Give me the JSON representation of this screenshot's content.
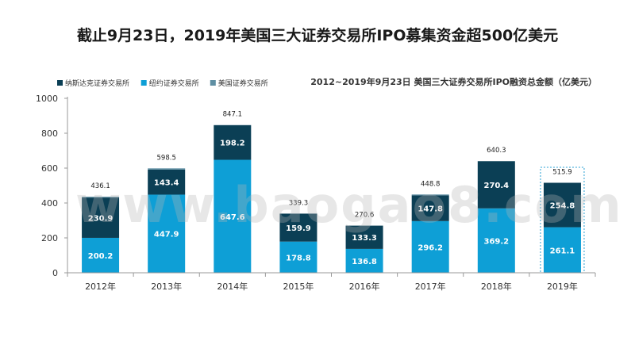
{
  "title": "截止9月23日，2019年美国三大证券交易所IPO募集资金超500亿美元",
  "watermark": "www.baogao8.com",
  "chart_data": {
    "type": "bar",
    "stacked": true,
    "subtitle": "2012~2019年9月23日 美国三大证券交易所IPO融资总金额（亿美元）",
    "categories": [
      "2012年",
      "2013年",
      "2014年",
      "2015年",
      "2016年",
      "2017年",
      "2018年",
      "2019年"
    ],
    "series": [
      {
        "name": "纽约证券交易所",
        "color": "#0e9fd6",
        "values": [
          200.2,
          447.9,
          647.6,
          178.8,
          136.8,
          296.2,
          369.2,
          261.1
        ]
      },
      {
        "name": "纳斯达克证券交易所",
        "color": "#0b3f55",
        "values": [
          230.9,
          143.4,
          198.2,
          159.9,
          133.3,
          147.8,
          270.4,
          254.8
        ]
      },
      {
        "name": "美国证券交易所",
        "color": "#5f8fa3",
        "values": [
          5.0,
          7.2,
          1.3,
          0.6,
          0.5,
          4.8,
          0.7,
          0.0
        ]
      }
    ],
    "totals": [
      436.1,
      598.5,
      847.1,
      "339.3",
      "270.6",
      448.8,
      640.3,
      515.9
    ],
    "legend_order": [
      "纳斯达克证券交易所",
      "纽约证券交易所",
      "美国证券交易所"
    ],
    "legend_position": "top-left",
    "ylim": [
      0,
      1000
    ],
    "yticks": [
      0,
      200,
      400,
      600,
      800,
      1000
    ],
    "highlight_category": "2019年",
    "grid": false
  }
}
